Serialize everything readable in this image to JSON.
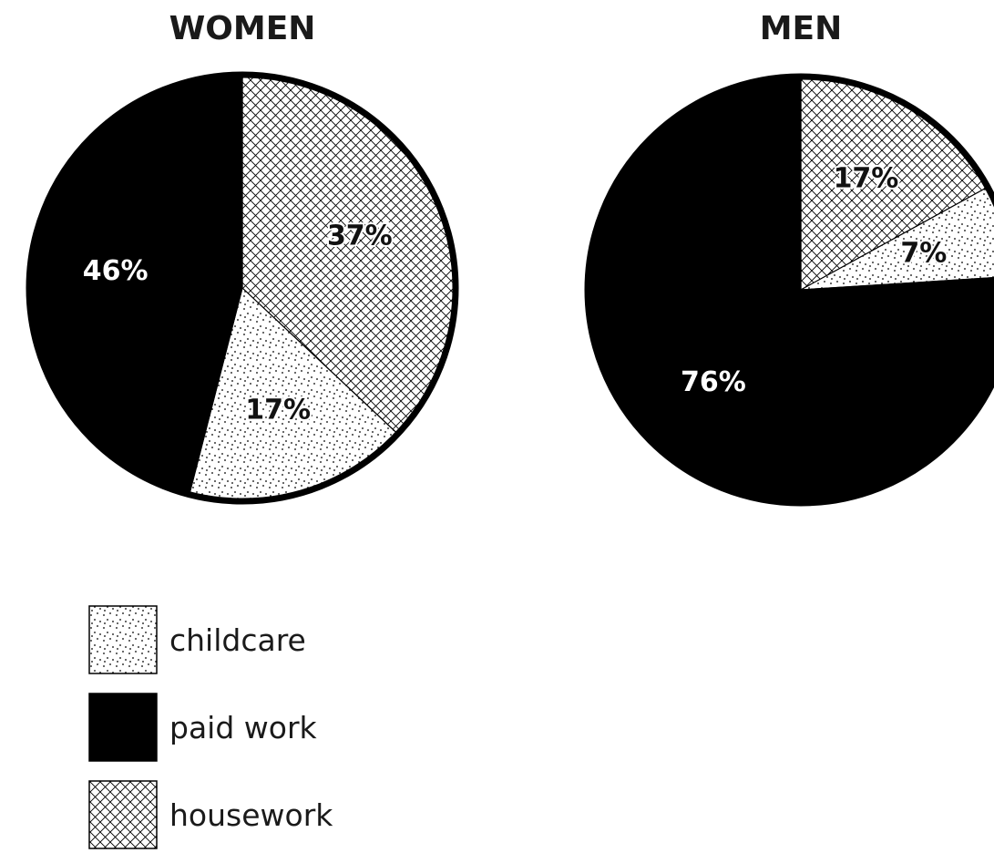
{
  "chart_data": [
    {
      "type": "pie",
      "title": "WOMEN",
      "start_angle_deg": 0,
      "direction": "clockwise",
      "slices": [
        {
          "category": "housework",
          "value": 37,
          "label": "37%"
        },
        {
          "category": "childcare",
          "value": 17,
          "label": "17%"
        },
        {
          "category": "paid work",
          "value": 46,
          "label": "46%"
        }
      ]
    },
    {
      "type": "pie",
      "title": "MEN",
      "start_angle_deg": 0,
      "direction": "clockwise",
      "slices": [
        {
          "category": "housework",
          "value": 17,
          "label": "17%"
        },
        {
          "category": "childcare",
          "value": 7,
          "label": "7%"
        },
        {
          "category": "paid work",
          "value": 76,
          "label": "76%"
        }
      ]
    }
  ],
  "legend": {
    "placement": "bottom-left",
    "items": [
      {
        "category": "childcare",
        "label": "childcare",
        "pattern": "dots"
      },
      {
        "category": "paid work",
        "label": "paid work",
        "pattern": "solid-black"
      },
      {
        "category": "housework",
        "label": "housework",
        "pattern": "crosshatch"
      }
    ]
  },
  "colors": {
    "paid_work": "#000000",
    "background": "#ffffff",
    "text_dark": "#1a1a1a"
  }
}
